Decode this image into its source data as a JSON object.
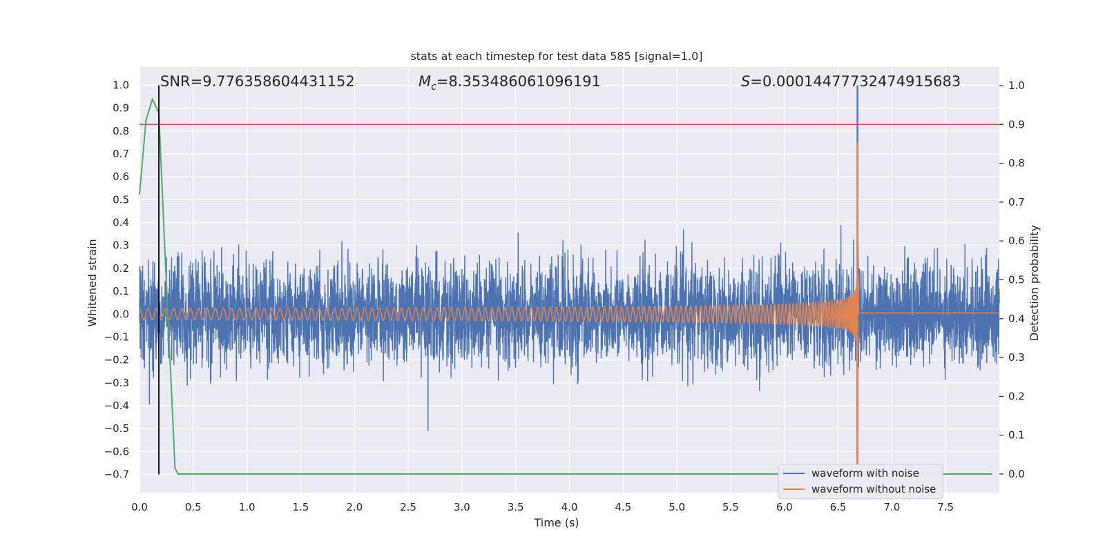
{
  "chart_data": {
    "type": "line",
    "title": "stats at each timestep for test data 585 [signal=1.0]",
    "xlabel": "Time (s)",
    "ylabel": "Whitened strain",
    "y2label": "Detection probability",
    "xlim": [
      0.0,
      8.0
    ],
    "ylim": [
      -0.78,
      1.08
    ],
    "y2lim": [
      -0.048,
      1.048
    ],
    "x_ticks": [
      0.0,
      0.5,
      1.0,
      1.5,
      2.0,
      2.5,
      3.0,
      3.5,
      4.0,
      4.5,
      5.0,
      5.5,
      6.0,
      6.5,
      7.0,
      7.5
    ],
    "x_tick_labels": [
      "0.0",
      "0.5",
      "1.0",
      "1.5",
      "2.0",
      "2.5",
      "3.0",
      "3.5",
      "4.0",
      "4.5",
      "5.0",
      "5.5",
      "6.0",
      "6.5",
      "7.0",
      "7.5"
    ],
    "y_ticks": [
      1.0,
      0.9,
      0.8,
      0.7,
      0.6,
      0.5,
      0.4,
      0.3,
      0.2,
      0.1,
      0.0,
      -0.1,
      -0.2,
      -0.3,
      -0.4,
      -0.5,
      -0.6,
      -0.7
    ],
    "y_tick_labels": [
      "1.0",
      "0.9",
      "0.8",
      "0.7",
      "0.6",
      "0.5",
      "0.4",
      "0.3",
      "0.2",
      "0.1",
      "0.0",
      "−0.1",
      "−0.2",
      "−0.3",
      "−0.4",
      "−0.5",
      "−0.6",
      "−0.7"
    ],
    "y2_ticks": [
      1.0,
      0.9,
      0.8,
      0.7,
      0.6,
      0.5,
      0.4,
      0.3,
      0.2,
      0.1,
      0.0
    ],
    "y2_tick_labels": [
      "1.0",
      "0.9",
      "0.8",
      "0.7",
      "0.6",
      "0.5",
      "0.4",
      "0.3",
      "0.2",
      "0.1",
      "0.0"
    ],
    "grid": true,
    "legend_position": "bottom-right",
    "annotations": {
      "snr": "SNR=9.776358604431152",
      "mc_symbol": "M",
      "mc_sub": "c",
      "mc_value": "=8.353486061096191",
      "s_symbol": "S",
      "s_value": "=0.00014477732474915683"
    },
    "series": [
      {
        "name": "waveform with noise",
        "color": "#4c72b0",
        "description_values": {
          "noise_amplitude_typical": 0.27,
          "merger_time": 6.68,
          "merger_peak_max": 1.0,
          "merger_peak_min": -0.66
        }
      },
      {
        "name": "waveform without noise",
        "color": "#dd8452",
        "description_values": {
          "start_amplitude": 0.025,
          "merger_time": 6.68,
          "merger_peak_max": 0.75,
          "merger_peak_min": -0.66,
          "post_merger_level": 0.005
        }
      },
      {
        "name": "",
        "color": "#55a868",
        "axis": "right",
        "x": [
          0.0,
          0.06,
          0.12,
          0.18,
          0.24,
          0.3,
          0.33,
          0.36,
          0.42,
          8.0
        ],
        "y": [
          0.72,
          0.91,
          0.965,
          0.93,
          0.55,
          0.2,
          0.015,
          0.0,
          0.0,
          0.0
        ]
      }
    ],
    "threshold_line": {
      "value": 0.9,
      "axis": "right",
      "color": "#c44e52"
    },
    "vertical_line": {
      "x": 0.18,
      "color": "#000000"
    }
  }
}
